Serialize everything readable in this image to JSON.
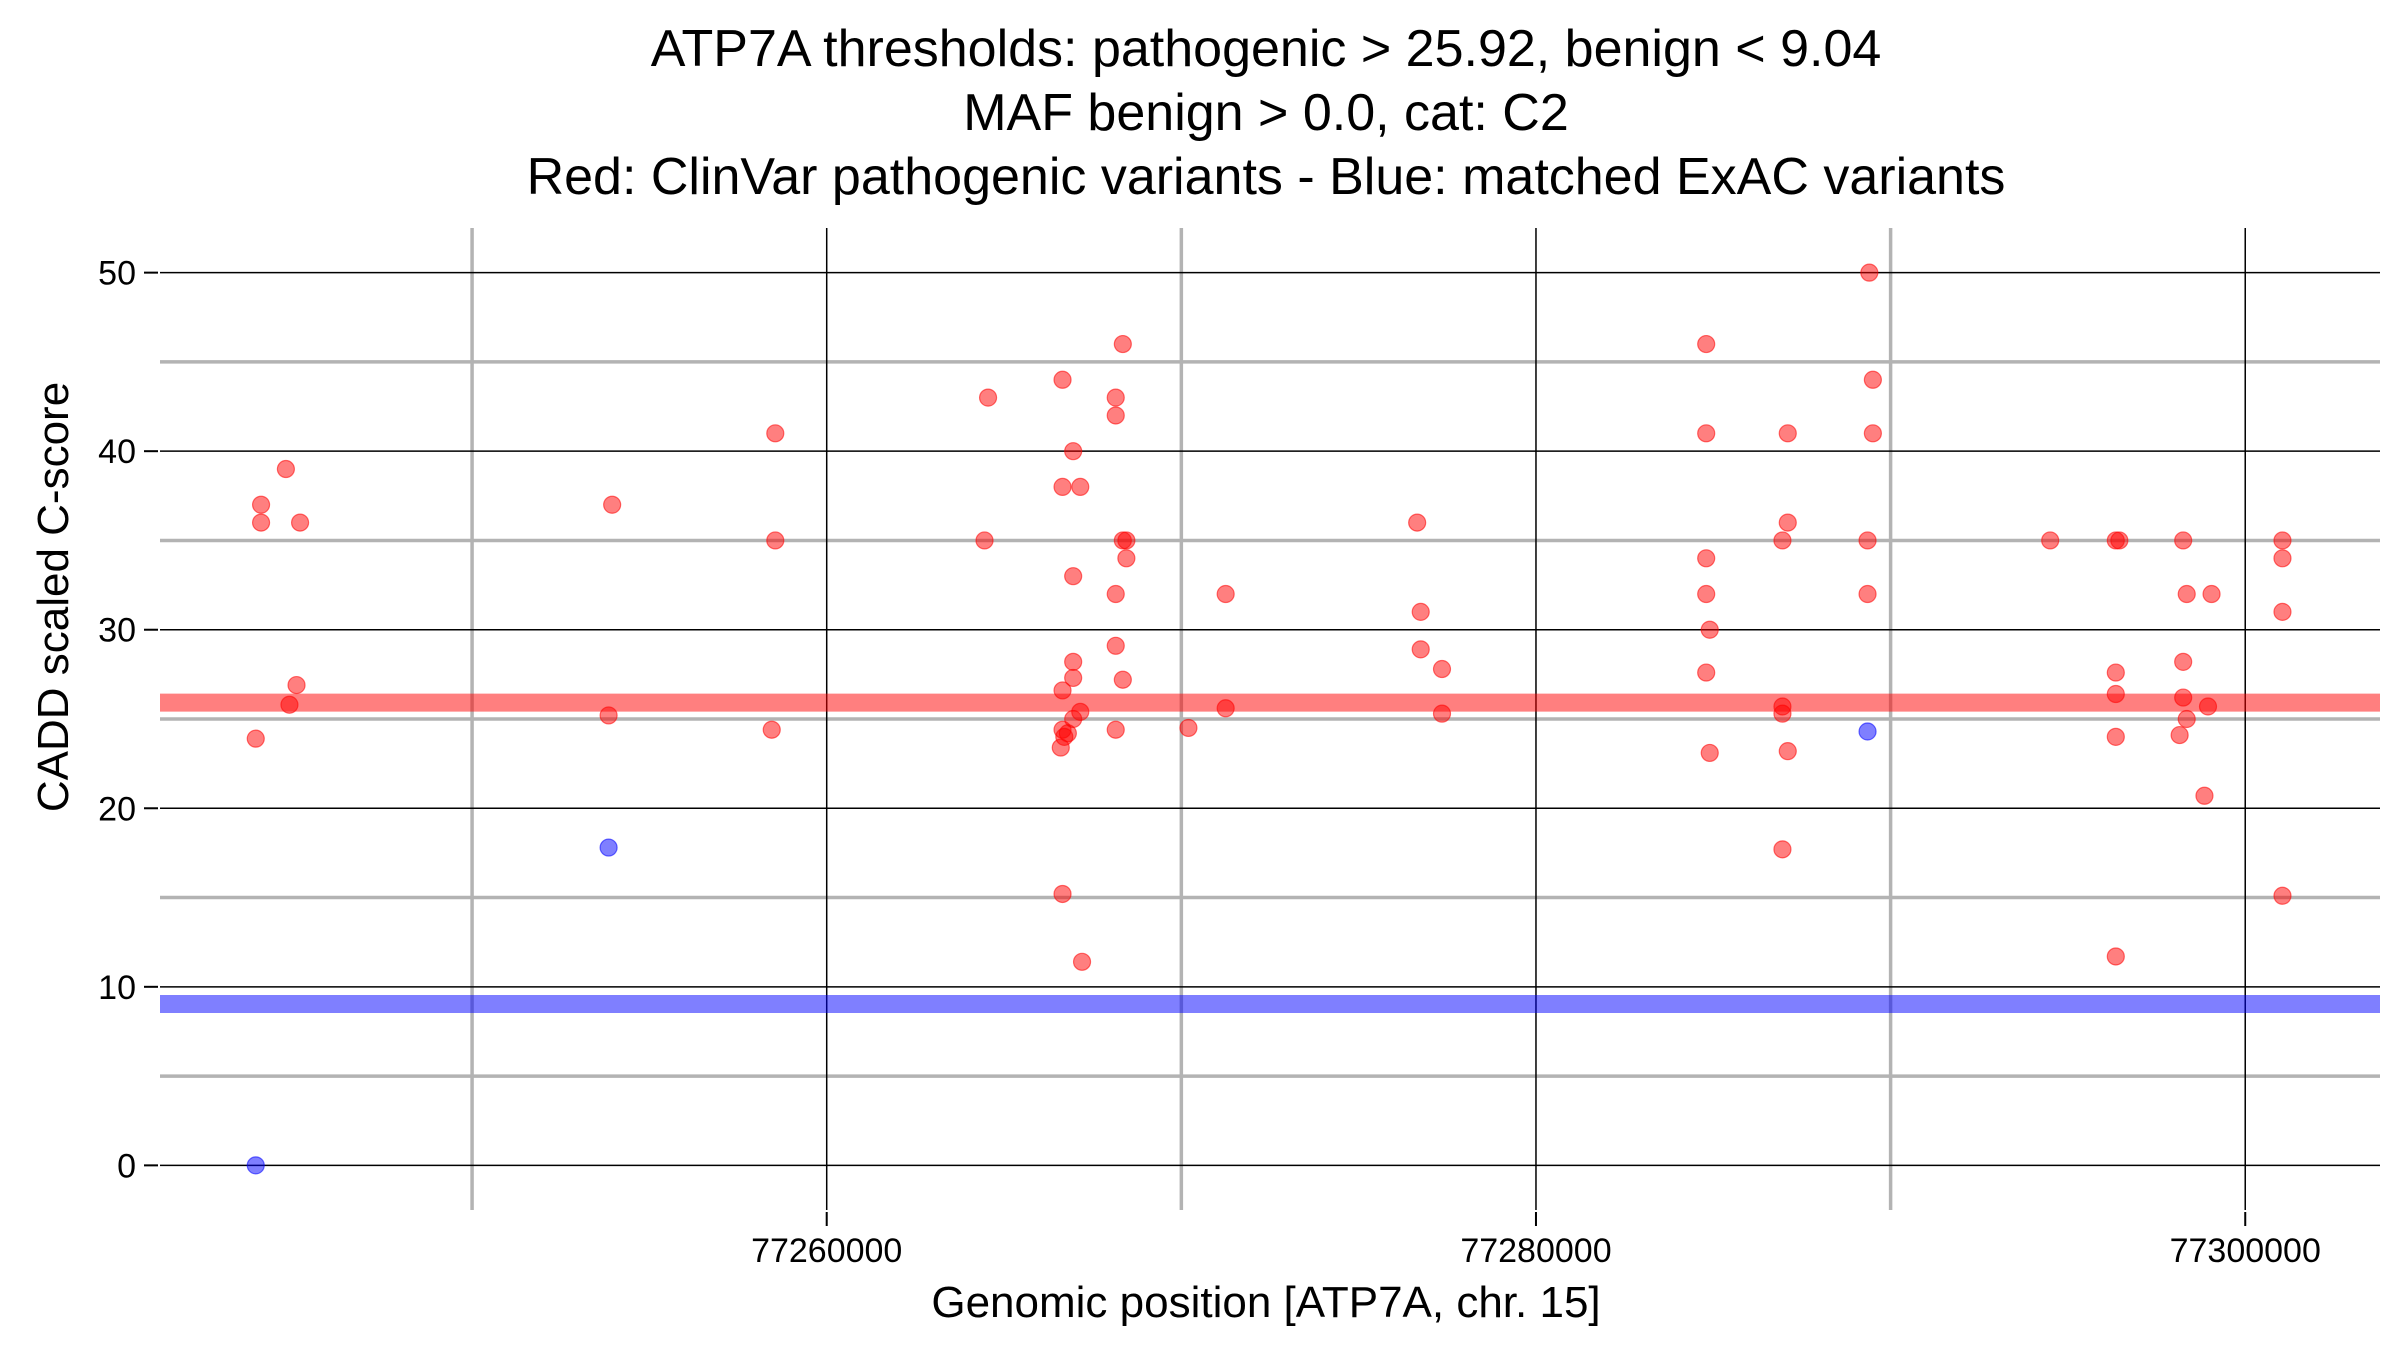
{
  "chart_data": {
    "type": "scatter",
    "title_lines": [
      "ATP7A thresholds: pathogenic > 25.92, benign < 9.04",
      "MAF benign > 0.0, cat: C2",
      "Red: ClinVar pathogenic variants - Blue: matched ExAC variants"
    ],
    "xlabel": "Genomic position [ATP7A, chr. 15]",
    "ylabel": "CADD scaled C-score",
    "xlim": [
      77241200,
      77303800
    ],
    "ylim": [
      -2.5,
      52.5
    ],
    "x_ticks": [
      77260000,
      77280000,
      77300000
    ],
    "x_tick_labels": [
      "77260000",
      "77280000",
      "77300000"
    ],
    "x_minor_gridlines": [
      77250000,
      77270000,
      77290000
    ],
    "y_ticks": [
      0,
      10,
      20,
      30,
      40,
      50
    ],
    "y_tick_labels": [
      "0",
      "10",
      "20",
      "30",
      "40",
      "50"
    ],
    "y_minor_gridlines": [
      5,
      15,
      25,
      35,
      45
    ],
    "grid": true,
    "thresholds": [
      {
        "name": "pathogenic",
        "value": 25.92,
        "color": "#ff0000"
      },
      {
        "name": "benign",
        "value": 9.04,
        "color": "#0000ff"
      }
    ],
    "series": [
      {
        "name": "ClinVar pathogenic variants",
        "color": "#ff0000",
        "points": [
          [
            77244050,
            37
          ],
          [
            77244050,
            36
          ],
          [
            77243900,
            23.9
          ],
          [
            77244850,
            25.8
          ],
          [
            77245050,
            26.9
          ],
          [
            77244750,
            39
          ],
          [
            77245150,
            36
          ],
          [
            77253950,
            37
          ],
          [
            77253850,
            25.2
          ],
          [
            77258550,
            41
          ],
          [
            77258550,
            35
          ],
          [
            77258450,
            24.4
          ],
          [
            77264550,
            43
          ],
          [
            77264450,
            35
          ],
          [
            77266650,
            44
          ],
          [
            77266650,
            38
          ],
          [
            77266950,
            40
          ],
          [
            77267150,
            38
          ],
          [
            77266950,
            33
          ],
          [
            77266950,
            28.2
          ],
          [
            77266950,
            27.3
          ],
          [
            77266650,
            26.6
          ],
          [
            77266650,
            24.4
          ],
          [
            77266800,
            24.2
          ],
          [
            77266700,
            24.0
          ],
          [
            77266950,
            25.0
          ],
          [
            77267150,
            25.4
          ],
          [
            77266600,
            23.4
          ],
          [
            77266650,
            15.2
          ],
          [
            77267200,
            11.4
          ],
          [
            77268350,
            46
          ],
          [
            77268150,
            43
          ],
          [
            77268150,
            42
          ],
          [
            77268350,
            35
          ],
          [
            77268450,
            35
          ],
          [
            77268450,
            34
          ],
          [
            77268150,
            32
          ],
          [
            77268150,
            29.1
          ],
          [
            77268350,
            27.2
          ],
          [
            77268150,
            24.4
          ],
          [
            77270200,
            24.5
          ],
          [
            77271250,
            32
          ],
          [
            77271250,
            25.6
          ],
          [
            77276650,
            36
          ],
          [
            77276750,
            31
          ],
          [
            77276750,
            28.9
          ],
          [
            77277350,
            27.8
          ],
          [
            77277350,
            25.3
          ],
          [
            77284800,
            46
          ],
          [
            77284800,
            41
          ],
          [
            77284800,
            34
          ],
          [
            77284800,
            32
          ],
          [
            77284900,
            30
          ],
          [
            77284800,
            27.6
          ],
          [
            77284900,
            23.1
          ],
          [
            77287100,
            41
          ],
          [
            77287100,
            36
          ],
          [
            77286950,
            35
          ],
          [
            77286950,
            25.7
          ],
          [
            77286950,
            25.3
          ],
          [
            77287100,
            23.2
          ],
          [
            77286950,
            17.7
          ],
          [
            77289400,
            50
          ],
          [
            77289500,
            44
          ],
          [
            77289500,
            41
          ],
          [
            77289350,
            35
          ],
          [
            77289350,
            32
          ],
          [
            77294500,
            35
          ],
          [
            77296350,
            35
          ],
          [
            77296450,
            35
          ],
          [
            77296350,
            27.6
          ],
          [
            77296350,
            26.4
          ],
          [
            77296350,
            24.0
          ],
          [
            77296350,
            11.7
          ],
          [
            77298250,
            35
          ],
          [
            77298350,
            32
          ],
          [
            77298250,
            28.2
          ],
          [
            77298250,
            26.2
          ],
          [
            77298350,
            25.0
          ],
          [
            77298150,
            24.1
          ],
          [
            77299050,
            32
          ],
          [
            77298950,
            25.7
          ],
          [
            77298850,
            20.7
          ],
          [
            77301050,
            35
          ],
          [
            77301050,
            34
          ],
          [
            77301050,
            31
          ],
          [
            77301050,
            15.1
          ]
        ]
      },
      {
        "name": "matched ExAC variants",
        "color": "#0000ff",
        "points": [
          [
            77243900,
            0
          ],
          [
            77253850,
            17.8
          ],
          [
            77289350,
            24.3
          ]
        ]
      }
    ]
  }
}
